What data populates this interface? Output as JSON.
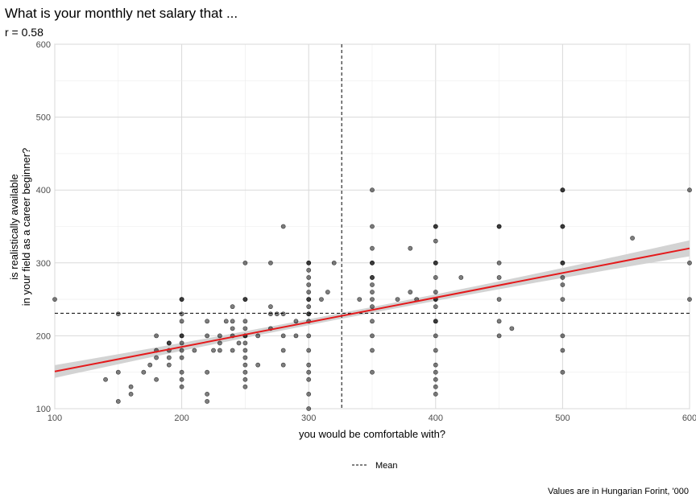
{
  "chart_data": {
    "type": "scatter",
    "title": "What is your monthly net salary that ...",
    "subtitle": "r = 0.58",
    "xlabel": "you would be comfortable with?",
    "ylabel_lines": [
      "is realistically available",
      "in your field as a career beginner?"
    ],
    "caption": "Values are in Hungarian Forint, '000",
    "xlim": [
      100,
      600
    ],
    "ylim": [
      100,
      600
    ],
    "x_ticks": [
      100,
      200,
      300,
      400,
      500,
      600
    ],
    "y_ticks": [
      100,
      200,
      300,
      400,
      500,
      600
    ],
    "grid": true,
    "mean_x": 326,
    "mean_y": 231,
    "legend": {
      "position": "bottom",
      "entries": [
        {
          "label": "Mean",
          "style": "dashed"
        }
      ]
    },
    "regression": {
      "x": [
        100,
        600
      ],
      "y": [
        151,
        320
      ],
      "color": "#e41a1c",
      "band_color": "#d3d3d3",
      "band_halfwidth_at_ends": 11,
      "band_halfwidth_at_mean": 4
    },
    "point_color": "#000000",
    "point_opacity": 0.5,
    "points": [
      [
        100,
        250
      ],
      [
        140,
        140
      ],
      [
        150,
        230
      ],
      [
        150,
        150
      ],
      [
        150,
        110
      ],
      [
        160,
        130
      ],
      [
        160,
        120
      ],
      [
        170,
        150
      ],
      [
        175,
        160
      ],
      [
        180,
        200
      ],
      [
        180,
        180
      ],
      [
        180,
        170
      ],
      [
        180,
        140
      ],
      [
        190,
        190
      ],
      [
        190,
        180
      ],
      [
        190,
        170
      ],
      [
        190,
        160
      ],
      [
        190,
        190
      ],
      [
        200,
        250
      ],
      [
        200,
        250
      ],
      [
        200,
        230
      ],
      [
        200,
        220
      ],
      [
        200,
        200
      ],
      [
        200,
        190
      ],
      [
        200,
        180
      ],
      [
        200,
        170
      ],
      [
        200,
        150
      ],
      [
        200,
        140
      ],
      [
        200,
        130
      ],
      [
        200,
        200
      ],
      [
        210,
        180
      ],
      [
        220,
        220
      ],
      [
        220,
        200
      ],
      [
        220,
        150
      ],
      [
        220,
        120
      ],
      [
        220,
        110
      ],
      [
        225,
        180
      ],
      [
        230,
        200
      ],
      [
        230,
        190
      ],
      [
        230,
        180
      ],
      [
        235,
        220
      ],
      [
        240,
        240
      ],
      [
        240,
        200
      ],
      [
        240,
        180
      ],
      [
        240,
        210
      ],
      [
        240,
        220
      ],
      [
        245,
        190
      ],
      [
        250,
        300
      ],
      [
        250,
        250
      ],
      [
        250,
        220
      ],
      [
        250,
        200
      ],
      [
        250,
        190
      ],
      [
        250,
        180
      ],
      [
        250,
        170
      ],
      [
        250,
        160
      ],
      [
        250,
        150
      ],
      [
        250,
        140
      ],
      [
        250,
        130
      ],
      [
        250,
        210
      ],
      [
        250,
        250
      ],
      [
        250,
        200
      ],
      [
        260,
        200
      ],
      [
        260,
        160
      ],
      [
        270,
        300
      ],
      [
        270,
        240
      ],
      [
        270,
        230
      ],
      [
        270,
        210
      ],
      [
        275,
        230
      ],
      [
        280,
        350
      ],
      [
        280,
        230
      ],
      [
        280,
        200
      ],
      [
        280,
        180
      ],
      [
        280,
        160
      ],
      [
        290,
        220
      ],
      [
        290,
        200
      ],
      [
        300,
        300
      ],
      [
        300,
        290
      ],
      [
        300,
        280
      ],
      [
        300,
        270
      ],
      [
        300,
        260
      ],
      [
        300,
        250
      ],
      [
        300,
        240
      ],
      [
        300,
        230
      ],
      [
        300,
        220
      ],
      [
        300,
        200
      ],
      [
        300,
        180
      ],
      [
        300,
        160
      ],
      [
        300,
        150
      ],
      [
        300,
        140
      ],
      [
        300,
        120
      ],
      [
        300,
        100
      ],
      [
        300,
        300
      ],
      [
        300,
        250
      ],
      [
        300,
        230
      ],
      [
        310,
        250
      ],
      [
        315,
        260
      ],
      [
        320,
        300
      ],
      [
        340,
        250
      ],
      [
        350,
        400
      ],
      [
        350,
        350
      ],
      [
        350,
        320
      ],
      [
        350,
        300
      ],
      [
        350,
        280
      ],
      [
        350,
        270
      ],
      [
        350,
        260
      ],
      [
        350,
        250
      ],
      [
        350,
        240
      ],
      [
        350,
        220
      ],
      [
        350,
        200
      ],
      [
        350,
        180
      ],
      [
        350,
        150
      ],
      [
        350,
        300
      ],
      [
        350,
        280
      ],
      [
        370,
        250
      ],
      [
        380,
        320
      ],
      [
        380,
        260
      ],
      [
        385,
        250
      ],
      [
        400,
        350
      ],
      [
        400,
        330
      ],
      [
        400,
        300
      ],
      [
        400,
        280
      ],
      [
        400,
        260
      ],
      [
        400,
        250
      ],
      [
        400,
        240
      ],
      [
        400,
        220
      ],
      [
        400,
        200
      ],
      [
        400,
        180
      ],
      [
        400,
        160
      ],
      [
        400,
        150
      ],
      [
        400,
        140
      ],
      [
        400,
        130
      ],
      [
        400,
        120
      ],
      [
        400,
        350
      ],
      [
        400,
        300
      ],
      [
        400,
        250
      ],
      [
        400,
        220
      ],
      [
        420,
        280
      ],
      [
        450,
        350
      ],
      [
        450,
        300
      ],
      [
        450,
        280
      ],
      [
        450,
        250
      ],
      [
        450,
        220
      ],
      [
        450,
        200
      ],
      [
        450,
        350
      ],
      [
        460,
        210
      ],
      [
        500,
        400
      ],
      [
        500,
        350
      ],
      [
        500,
        300
      ],
      [
        500,
        280
      ],
      [
        500,
        270
      ],
      [
        500,
        250
      ],
      [
        500,
        200
      ],
      [
        500,
        180
      ],
      [
        500,
        150
      ],
      [
        500,
        400
      ],
      [
        500,
        350
      ],
      [
        500,
        300
      ],
      [
        555,
        334
      ],
      [
        600,
        400
      ],
      [
        600,
        300
      ],
      [
        600,
        250
      ]
    ]
  }
}
